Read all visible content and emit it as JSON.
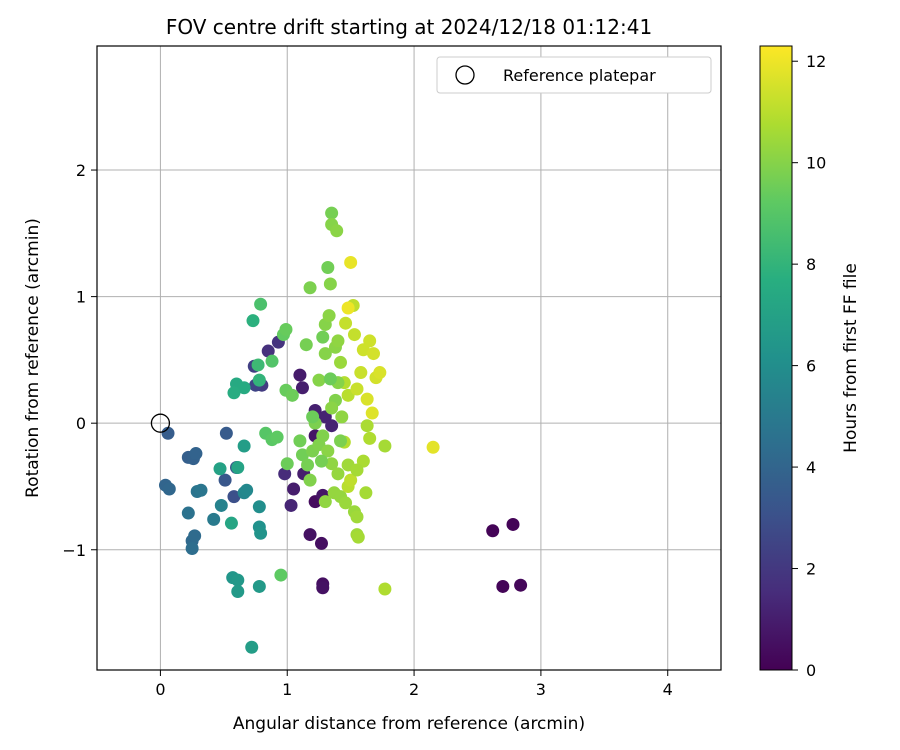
{
  "chart_data": {
    "type": "scatter",
    "title": "FOV centre drift starting at 2024/12/18 01:12:41",
    "xlabel": "Angular distance from reference (arcmin)",
    "ylabel": "Rotation from reference (arcmin)",
    "xlim": [
      -0.5,
      4.42
    ],
    "ylim": [
      -1.95,
      2.98
    ],
    "xticks": [
      0,
      1,
      2,
      3,
      4
    ],
    "xtick_labels": [
      "0",
      "1",
      "2",
      "3",
      "4"
    ],
    "yticks": [
      -1,
      0,
      1,
      2
    ],
    "ytick_labels": [
      "−1",
      "0",
      "1",
      "2"
    ],
    "grid": true,
    "legend": {
      "position": "upper right",
      "label": "Reference platepar"
    },
    "reference_point": {
      "x": 0,
      "y": 0
    },
    "colorbar": {
      "label": "Hours from first FF file",
      "colormap": "viridis",
      "range": [
        0,
        12.3
      ],
      "ticks": [
        0,
        2,
        4,
        6,
        8,
        10,
        12
      ],
      "tick_labels": [
        "0",
        "2",
        "4",
        "6",
        "8",
        "10",
        "12"
      ]
    },
    "points": [
      {
        "x": 2.62,
        "y": -0.85,
        "h": 0.1
      },
      {
        "x": 2.78,
        "y": -0.8,
        "h": 0.1
      },
      {
        "x": 2.7,
        "y": -1.29,
        "h": 0.15
      },
      {
        "x": 2.84,
        "y": -1.28,
        "h": 0.2
      },
      {
        "x": 1.22,
        "y": -0.62,
        "h": 0.4
      },
      {
        "x": 1.27,
        "y": -0.95,
        "h": 0.5
      },
      {
        "x": 1.28,
        "y": -1.27,
        "h": 0.5
      },
      {
        "x": 1.28,
        "y": -1.3,
        "h": 0.6
      },
      {
        "x": 1.18,
        "y": -0.88,
        "h": 0.6
      },
      {
        "x": 1.28,
        "y": -0.57,
        "h": 0.7
      },
      {
        "x": 1.22,
        "y": -0.1,
        "h": 0.7
      },
      {
        "x": 1.1,
        "y": 0.38,
        "h": 0.9
      },
      {
        "x": 1.12,
        "y": 0.28,
        "h": 1.0
      },
      {
        "x": 1.05,
        "y": -0.52,
        "h": 1.0
      },
      {
        "x": 1.13,
        "y": -0.4,
        "h": 1.0
      },
      {
        "x": 1.22,
        "y": 0.1,
        "h": 1.1
      },
      {
        "x": 1.3,
        "y": 0.05,
        "h": 1.2
      },
      {
        "x": 1.35,
        "y": -0.02,
        "h": 1.2
      },
      {
        "x": 1.03,
        "y": -0.65,
        "h": 1.3
      },
      {
        "x": 0.98,
        "y": -0.4,
        "h": 1.5
      },
      {
        "x": 0.85,
        "y": 0.57,
        "h": 1.7
      },
      {
        "x": 0.93,
        "y": 0.64,
        "h": 1.8
      },
      {
        "x": 0.8,
        "y": 0.3,
        "h": 2.1
      },
      {
        "x": 0.74,
        "y": 0.45,
        "h": 2.3
      },
      {
        "x": 0.75,
        "y": 0.3,
        "h": 2.5
      },
      {
        "x": 0.58,
        "y": -0.58,
        "h": 3.0
      },
      {
        "x": 0.6,
        "y": -0.35,
        "h": 3.1
      },
      {
        "x": 0.51,
        "y": -0.45,
        "h": 3.3
      },
      {
        "x": 0.52,
        "y": -0.08,
        "h": 3.5
      },
      {
        "x": 0.06,
        "y": -0.08,
        "h": 3.6
      },
      {
        "x": 0.22,
        "y": -0.27,
        "h": 3.7
      },
      {
        "x": 0.26,
        "y": -0.28,
        "h": 3.8
      },
      {
        "x": 0.28,
        "y": -0.24,
        "h": 3.9
      },
      {
        "x": 0.04,
        "y": -0.49,
        "h": 4.0
      },
      {
        "x": 0.07,
        "y": -0.52,
        "h": 4.1
      },
      {
        "x": 0.25,
        "y": -0.93,
        "h": 4.2
      },
      {
        "x": 0.27,
        "y": -0.89,
        "h": 4.3
      },
      {
        "x": 0.25,
        "y": -0.99,
        "h": 4.4
      },
      {
        "x": 0.22,
        "y": -0.71,
        "h": 4.6
      },
      {
        "x": 0.29,
        "y": -0.54,
        "h": 4.7
      },
      {
        "x": 0.32,
        "y": -0.53,
        "h": 4.8
      },
      {
        "x": 0.42,
        "y": -0.76,
        "h": 5.0
      },
      {
        "x": 0.48,
        "y": -0.65,
        "h": 5.4
      },
      {
        "x": 0.66,
        "y": -0.55,
        "h": 5.6
      },
      {
        "x": 0.68,
        "y": -0.53,
        "h": 5.7
      },
      {
        "x": 0.78,
        "y": -0.66,
        "h": 6.0
      },
      {
        "x": 0.78,
        "y": -0.82,
        "h": 6.2
      },
      {
        "x": 0.79,
        "y": -0.87,
        "h": 6.3
      },
      {
        "x": 0.57,
        "y": -1.22,
        "h": 6.4
      },
      {
        "x": 0.61,
        "y": -1.24,
        "h": 6.5
      },
      {
        "x": 0.61,
        "y": -1.33,
        "h": 6.6
      },
      {
        "x": 0.78,
        "y": -1.29,
        "h": 6.6
      },
      {
        "x": 0.72,
        "y": -1.77,
        "h": 6.8
      },
      {
        "x": 0.66,
        "y": -0.18,
        "h": 6.8
      },
      {
        "x": 0.47,
        "y": -0.36,
        "h": 7.0
      },
      {
        "x": 0.61,
        "y": -0.35,
        "h": 7.1
      },
      {
        "x": 0.56,
        "y": -0.79,
        "h": 7.2
      },
      {
        "x": 0.6,
        "y": 0.31,
        "h": 7.4
      },
      {
        "x": 0.66,
        "y": 0.28,
        "h": 7.5
      },
      {
        "x": 0.58,
        "y": 0.24,
        "h": 7.6
      },
      {
        "x": 0.73,
        "y": 0.81,
        "h": 7.8
      },
      {
        "x": 0.78,
        "y": 0.34,
        "h": 8.0
      },
      {
        "x": 0.77,
        "y": 0.46,
        "h": 8.3
      },
      {
        "x": 0.79,
        "y": 0.94,
        "h": 8.7
      },
      {
        "x": 0.88,
        "y": 0.49,
        "h": 8.9
      },
      {
        "x": 0.83,
        "y": -0.08,
        "h": 9.0
      },
      {
        "x": 0.88,
        "y": -0.13,
        "h": 9.1
      },
      {
        "x": 0.92,
        "y": -0.11,
        "h": 9.2
      },
      {
        "x": 0.95,
        "y": -1.2,
        "h": 9.2
      },
      {
        "x": 0.97,
        "y": 0.7,
        "h": 9.3
      },
      {
        "x": 0.99,
        "y": 0.74,
        "h": 9.4
      },
      {
        "x": 0.99,
        "y": 0.26,
        "h": 9.4
      },
      {
        "x": 1.04,
        "y": 0.22,
        "h": 9.5
      },
      {
        "x": 1.0,
        "y": -0.32,
        "h": 9.5
      },
      {
        "x": 1.1,
        "y": -0.14,
        "h": 9.6
      },
      {
        "x": 1.12,
        "y": -0.25,
        "h": 9.6
      },
      {
        "x": 1.16,
        "y": -0.33,
        "h": 9.7
      },
      {
        "x": 1.15,
        "y": 0.62,
        "h": 9.7
      },
      {
        "x": 1.18,
        "y": 1.07,
        "h": 9.8
      },
      {
        "x": 1.2,
        "y": -0.22,
        "h": 9.8
      },
      {
        "x": 1.25,
        "y": -0.17,
        "h": 9.9
      },
      {
        "x": 1.28,
        "y": -0.1,
        "h": 9.9
      },
      {
        "x": 1.25,
        "y": 0.34,
        "h": 10.0
      },
      {
        "x": 1.3,
        "y": 0.55,
        "h": 10.0
      },
      {
        "x": 1.3,
        "y": 0.78,
        "h": 10.0
      },
      {
        "x": 1.32,
        "y": 1.23,
        "h": 9.6
      },
      {
        "x": 1.35,
        "y": 1.66,
        "h": 9.7
      },
      {
        "x": 1.35,
        "y": 1.57,
        "h": 10.0
      },
      {
        "x": 1.39,
        "y": 1.52,
        "h": 10.1
      },
      {
        "x": 1.34,
        "y": 1.1,
        "h": 10.0
      },
      {
        "x": 1.33,
        "y": 0.85,
        "h": 10.1
      },
      {
        "x": 1.38,
        "y": 0.6,
        "h": 10.1
      },
      {
        "x": 1.32,
        "y": -0.22,
        "h": 10.1
      },
      {
        "x": 1.35,
        "y": -0.32,
        "h": 10.2
      },
      {
        "x": 1.3,
        "y": -0.62,
        "h": 10.2
      },
      {
        "x": 1.37,
        "y": -0.55,
        "h": 10.3
      },
      {
        "x": 1.42,
        "y": -0.58,
        "h": 10.3
      },
      {
        "x": 1.46,
        "y": -0.63,
        "h": 10.4
      },
      {
        "x": 1.53,
        "y": -0.7,
        "h": 10.4
      },
      {
        "x": 1.55,
        "y": -0.74,
        "h": 10.5
      },
      {
        "x": 1.55,
        "y": -0.88,
        "h": 10.5
      },
      {
        "x": 1.56,
        "y": -0.9,
        "h": 10.6
      },
      {
        "x": 1.62,
        "y": -0.55,
        "h": 10.6
      },
      {
        "x": 1.6,
        "y": -0.3,
        "h": 10.7
      },
      {
        "x": 1.65,
        "y": -0.12,
        "h": 10.8
      },
      {
        "x": 1.45,
        "y": 0.32,
        "h": 10.9
      },
      {
        "x": 1.45,
        "y": -0.15,
        "h": 10.9
      },
      {
        "x": 1.48,
        "y": 0.22,
        "h": 11.0
      },
      {
        "x": 1.48,
        "y": -0.5,
        "h": 11.0
      },
      {
        "x": 1.5,
        "y": -0.45,
        "h": 11.1
      },
      {
        "x": 1.52,
        "y": 0.93,
        "h": 11.1
      },
      {
        "x": 1.46,
        "y": 0.79,
        "h": 11.2
      },
      {
        "x": 1.53,
        "y": 0.7,
        "h": 11.2
      },
      {
        "x": 1.58,
        "y": 0.4,
        "h": 11.3
      },
      {
        "x": 1.55,
        "y": 0.27,
        "h": 11.3
      },
      {
        "x": 1.6,
        "y": 0.58,
        "h": 11.4
      },
      {
        "x": 1.65,
        "y": 0.65,
        "h": 11.4
      },
      {
        "x": 1.68,
        "y": 0.55,
        "h": 11.5
      },
      {
        "x": 1.7,
        "y": 0.36,
        "h": 11.5
      },
      {
        "x": 1.73,
        "y": 0.4,
        "h": 11.6
      },
      {
        "x": 1.63,
        "y": 0.19,
        "h": 11.6
      },
      {
        "x": 1.67,
        "y": 0.08,
        "h": 11.7
      },
      {
        "x": 1.5,
        "y": 1.27,
        "h": 11.9
      },
      {
        "x": 1.48,
        "y": 0.91,
        "h": 12.0
      },
      {
        "x": 2.15,
        "y": -0.19,
        "h": 11.8
      },
      {
        "x": 1.77,
        "y": -0.18,
        "h": 10.6
      },
      {
        "x": 1.77,
        "y": -1.31,
        "h": 10.8
      },
      {
        "x": 1.4,
        "y": 0.32,
        "h": 10.0
      },
      {
        "x": 1.38,
        "y": 0.18,
        "h": 9.9
      },
      {
        "x": 1.43,
        "y": 0.05,
        "h": 10.2
      },
      {
        "x": 1.42,
        "y": -0.14,
        "h": 9.8
      },
      {
        "x": 1.48,
        "y": -0.33,
        "h": 10.5
      },
      {
        "x": 1.55,
        "y": -0.37,
        "h": 10.6
      },
      {
        "x": 1.63,
        "y": -0.02,
        "h": 10.7
      },
      {
        "x": 1.34,
        "y": 0.35,
        "h": 9.5
      },
      {
        "x": 1.28,
        "y": 0.68,
        "h": 9.6
      },
      {
        "x": 1.4,
        "y": 0.65,
        "h": 10.2
      },
      {
        "x": 1.42,
        "y": 0.48,
        "h": 10.4
      },
      {
        "x": 1.35,
        "y": 0.12,
        "h": 10.1
      },
      {
        "x": 1.22,
        "y": 0.0,
        "h": 9.8
      },
      {
        "x": 1.2,
        "y": 0.05,
        "h": 9.5
      },
      {
        "x": 1.27,
        "y": -0.3,
        "h": 9.7
      },
      {
        "x": 1.18,
        "y": -0.45,
        "h": 9.9
      },
      {
        "x": 1.4,
        "y": -0.4,
        "h": 10.3
      }
    ]
  }
}
